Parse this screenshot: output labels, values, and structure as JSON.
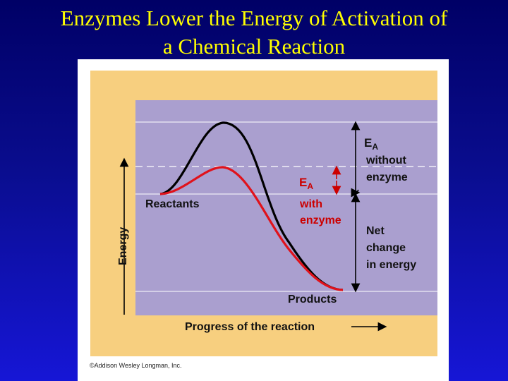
{
  "slide": {
    "title_line1": "Enzymes Lower the Energy of Activation of",
    "title_line2": "a Chemical Reaction"
  },
  "figure": {
    "axis_energy_label": "Energy",
    "axis_progress_label": "Progress of the reaction",
    "reactants_label": "Reactants",
    "products_label": "Products",
    "ea_without": {
      "symbol": "E",
      "subscript": "A",
      "line1": "without",
      "line2": "enzyme"
    },
    "ea_with": {
      "symbol": "E",
      "subscript": "A",
      "line1": "with",
      "line2": "enzyme"
    },
    "net_change": {
      "line1": "Net",
      "line2": "change",
      "line3": "in energy"
    },
    "copyright": "©Addison Wesley Longman, Inc."
  },
  "colors": {
    "background_top": "#000066",
    "background_bottom": "#1616d6",
    "title": "#ffff00",
    "panel_orange": "#f7cf7f",
    "plot_purple": "#aa9fcf",
    "curve_without_enzyme": "#000000",
    "curve_with_enzyme": "#e0121b",
    "label_red": "#cc0000"
  }
}
